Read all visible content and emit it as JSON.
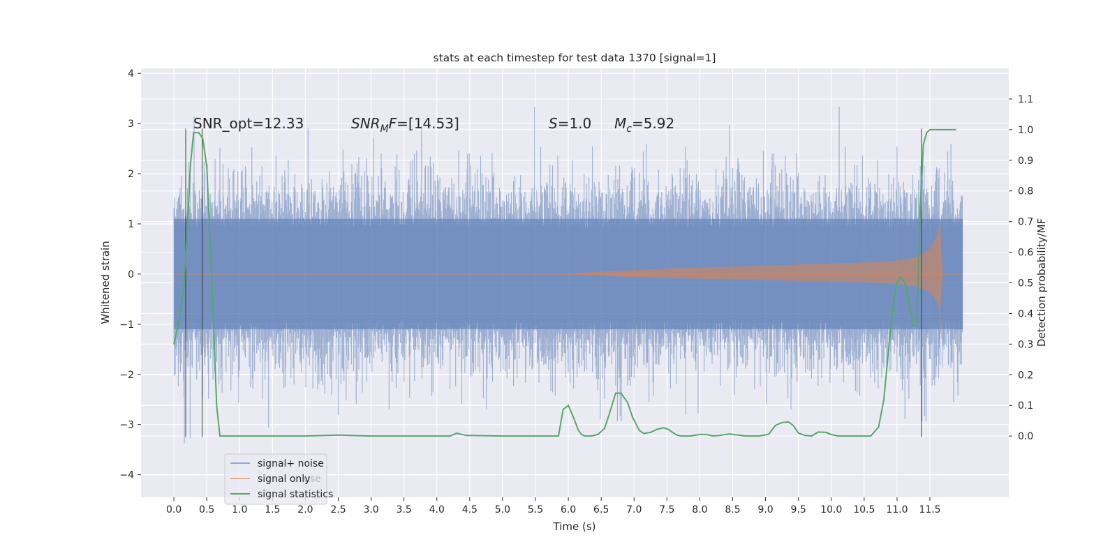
{
  "chart_data": {
    "type": "line",
    "title": "stats at each timestep for test data 1370 [signal=1]",
    "xlabel": "Time (s)",
    "ylabel_left": "Whitened strain",
    "ylabel_right": "Detection probability/MF",
    "xlim": [
      -0.5,
      12.7
    ],
    "ylim_left": [
      -4.45,
      4.1
    ],
    "ylim_right": [
      -0.2,
      1.2
    ],
    "x_ticks": [
      "0.0",
      "0.5",
      "1.0",
      "1.5",
      "2.0",
      "2.5",
      "3.0",
      "3.5",
      "4.0",
      "4.5",
      "5.0",
      "5.5",
      "6.0",
      "6.5",
      "7.0",
      "7.5",
      "8.0",
      "8.5",
      "9.0",
      "9.5",
      "10.0",
      "10.5",
      "11.0",
      "11.5"
    ],
    "y_ticks_left": [
      "4",
      "3",
      "2",
      "1",
      "0",
      "−1",
      "−2",
      "−3",
      "−4"
    ],
    "y_ticks_right": [
      "1.1",
      "1.0",
      "0.9",
      "0.8",
      "0.7",
      "0.6",
      "0.5",
      "0.4",
      "0.3",
      "0.2",
      "0.1",
      "0.0"
    ],
    "grid": true,
    "legend_position": "lower-left",
    "annotations": {
      "snr_opt": "SNR_opt=12.33",
      "snr_mf_main": "SNR",
      "snr_mf_sub": "M",
      "snr_mf_tail": "F=[14.53]",
      "s_main": "S",
      "s_tail": "=1.0",
      "mc_main": "M",
      "mc_sub": "c",
      "mc_tail": "=5.92"
    },
    "legend_overlap_text": "use",
    "series": [
      {
        "name": "signal+ noise",
        "color": "#4c72b0",
        "axis": "left",
        "description": "whitened strain with noise, spans t=0 to 12.0 s, envelope roughly ±1.6 with spikes to about ±3.7"
      },
      {
        "name": "signal only",
        "color": "#dd8452",
        "axis": "left",
        "description": "chirp signal, amplitude grows from ~0 at 6 s to ~1.0 at 11.65 s",
        "envelope": {
          "t": [
            0,
            5.5,
            6.0,
            6.5,
            7.0,
            7.5,
            8.0,
            8.5,
            9.0,
            9.5,
            10.0,
            10.5,
            11.0,
            11.3,
            11.5,
            11.6,
            11.65,
            11.7
          ],
          "amplitude": [
            0,
            0,
            0.01,
            0.05,
            0.08,
            0.11,
            0.13,
            0.15,
            0.17,
            0.19,
            0.21,
            0.23,
            0.27,
            0.34,
            0.5,
            0.75,
            1.0,
            0
          ]
        }
      },
      {
        "name": "signal statistics",
        "color": "#55a868",
        "axis": "right",
        "x": [
          0.0,
          0.08,
          0.15,
          0.2,
          0.25,
          0.3,
          0.38,
          0.44,
          0.5,
          0.58,
          0.65,
          0.7,
          1.0,
          2.0,
          2.5,
          3.0,
          4.0,
          4.2,
          4.3,
          4.45,
          5.0,
          5.5,
          5.85,
          5.92,
          6.0,
          6.08,
          6.15,
          6.2,
          6.25,
          6.35,
          6.45,
          6.55,
          6.62,
          6.72,
          6.8,
          6.9,
          6.98,
          7.08,
          7.15,
          7.25,
          7.35,
          7.45,
          7.52,
          7.6,
          7.65,
          7.72,
          7.85,
          8.0,
          8.1,
          8.2,
          8.3,
          8.45,
          8.55,
          8.7,
          8.9,
          9.05,
          9.15,
          9.25,
          9.35,
          9.42,
          9.5,
          9.6,
          9.7,
          9.8,
          9.92,
          10.0,
          10.1,
          10.25,
          10.4,
          10.6,
          10.72,
          10.8,
          10.87,
          10.95,
          11.0,
          11.05,
          11.12,
          11.18,
          11.25,
          11.3,
          11.35,
          11.4,
          11.45,
          11.5,
          11.55,
          11.65,
          11.9
        ],
        "y": [
          0.3,
          0.38,
          0.48,
          0.65,
          0.88,
          0.99,
          0.99,
          0.97,
          0.88,
          0.5,
          0.1,
          0.0,
          0.0,
          0.0,
          0.003,
          0.0,
          0.0,
          0.0,
          0.009,
          0.002,
          0.0,
          0.0,
          0.0,
          0.087,
          0.1,
          0.06,
          0.02,
          0.005,
          0.0,
          0.0,
          0.005,
          0.025,
          0.07,
          0.14,
          0.14,
          0.11,
          0.06,
          0.018,
          0.008,
          0.012,
          0.022,
          0.027,
          0.022,
          0.01,
          0.003,
          0.0,
          0.0,
          0.005,
          0.005,
          0.0,
          0.002,
          0.007,
          0.004,
          0.0,
          0.0,
          0.006,
          0.035,
          0.044,
          0.046,
          0.035,
          0.01,
          0.002,
          0.0,
          0.013,
          0.012,
          0.005,
          0.0,
          0.0,
          0.0,
          0.0,
          0.03,
          0.12,
          0.28,
          0.44,
          0.5,
          0.52,
          0.5,
          0.44,
          0.36,
          0.36,
          0.72,
          0.95,
          0.99,
          1.0,
          1.0,
          1.0,
          1.0
        ]
      }
    ],
    "vertical_lines_x": [
      0.18,
      0.43,
      11.37
    ]
  }
}
